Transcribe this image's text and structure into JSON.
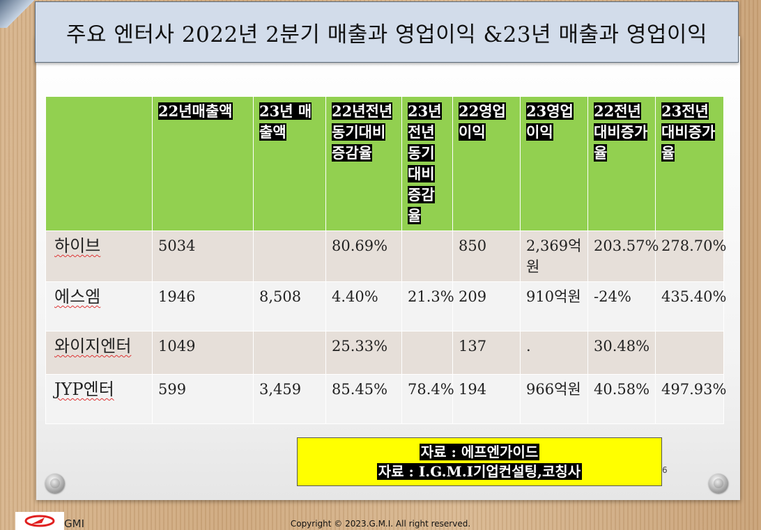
{
  "title": "주요 엔터사 2022년 2분기 매출과 영업이익 &23년 매출과 영업이익",
  "table": {
    "headers": [
      "",
      "22년매출액",
      "23년 매출액",
      "22년전년동기대비증감율",
      "23년전년동기대비증감율",
      "22영업이익",
      "23영업이익",
      "22전년대비증가율",
      "23전년대비증가율"
    ],
    "rows": [
      {
        "name": "하이브",
        "c1": "5034",
        "c2": "",
        "c3": "80.69%",
        "c4": "",
        "c5": "850",
        "c6": "2,369억원",
        "c7": "203.57%",
        "c8": "278.70%"
      },
      {
        "name": "에스엠",
        "c1": "1946",
        "c2": "8,508",
        "c3": "4.40%",
        "c4": "21.3%",
        "c5": "209",
        "c6": "910억원",
        "c7": "-24%",
        "c8": "435.40%"
      },
      {
        "name": "와이지엔터",
        "c1": "1049",
        "c2": "",
        "c3": "25.33%",
        "c4": "",
        "c5": "137",
        "c6": ".",
        "c7": "30.48%",
        "c8": ""
      },
      {
        "name": "JYP엔터",
        "c1": "599",
        "c2": "3,459",
        "c3": "85.45%",
        "c4": "78.4%",
        "c5": "194",
        "c6": "966억원",
        "c7": "40.58%",
        "c8": "497.93%"
      }
    ]
  },
  "source": {
    "line1": "자료 : 에프엔가이드",
    "line2": "자료 : I.G.M.I기업컨설팅,코칭사"
  },
  "page_number": "6",
  "logo_text": "GMI",
  "footer": "Copyright © 2023.G.M.I. All right reserved.",
  "colors": {
    "header_green": "#92d050",
    "source_yellow": "#ffff00",
    "title_bg": "#d2dcea"
  }
}
